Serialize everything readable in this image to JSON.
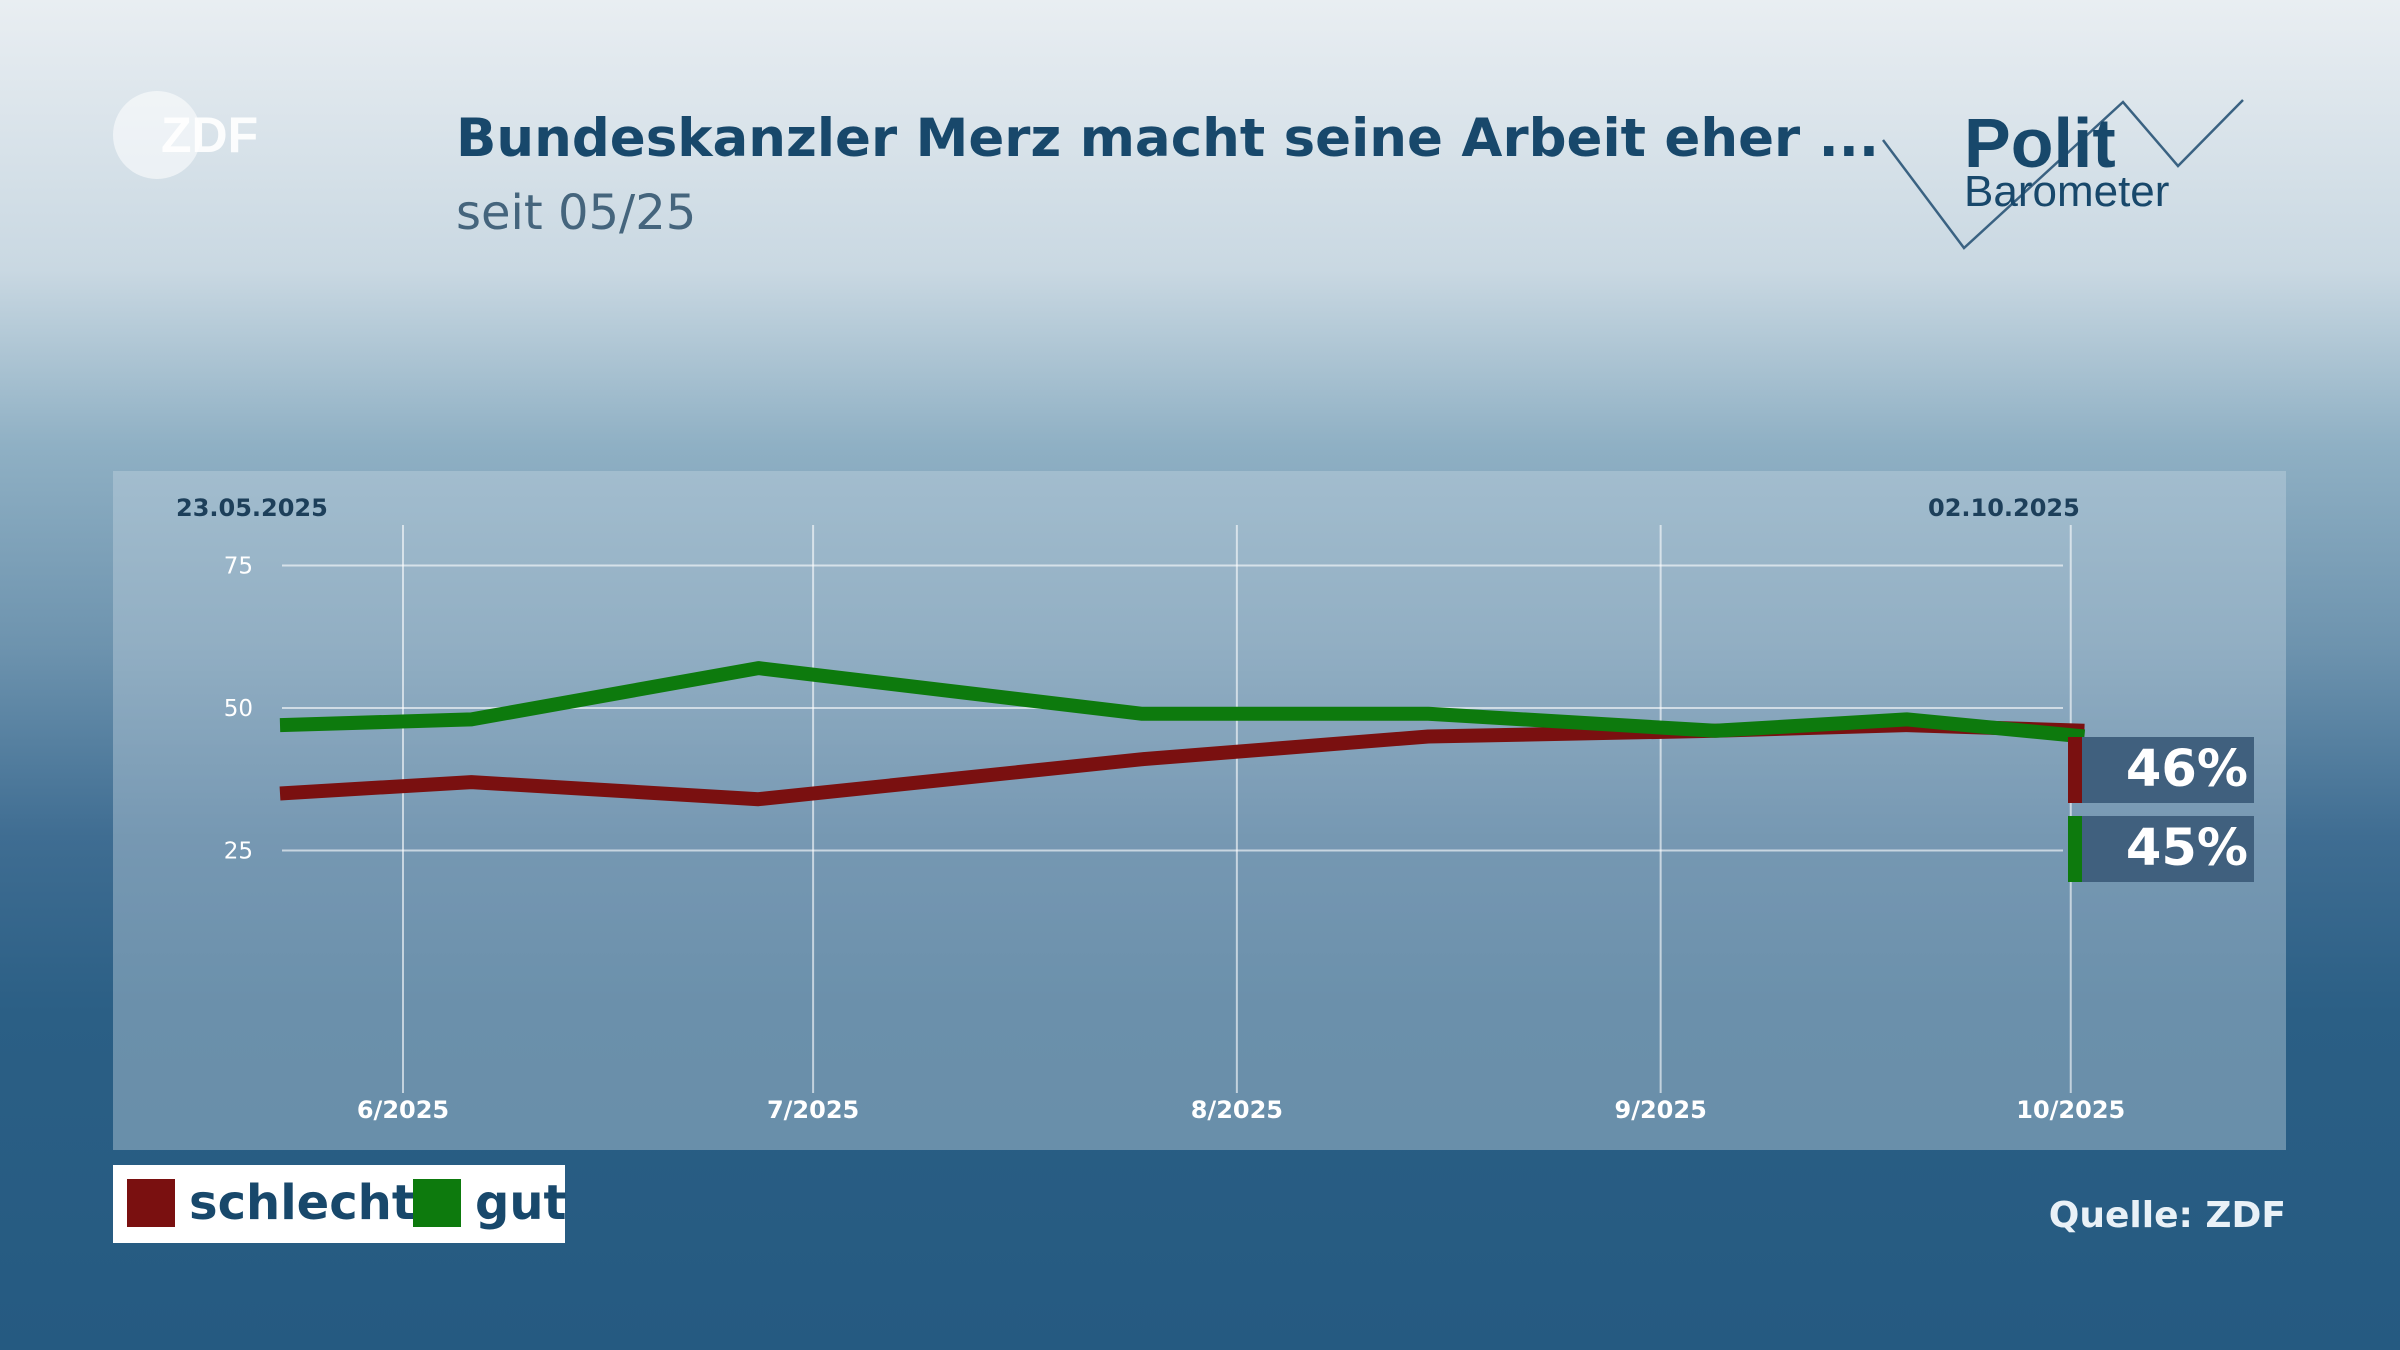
{
  "header": {
    "logo_text": "ZDF",
    "title": "Bundeskanzler Merz macht seine Arbeit eher ...",
    "subtitle": "seit 05/25",
    "brand_word_1": "Polit",
    "brand_word_2": "Barometer"
  },
  "chart_data": {
    "type": "line",
    "title": "Bundeskanzler Merz macht seine Arbeit eher ...",
    "subtitle": "seit 05/25",
    "date_start": "23.05.2025",
    "date_end": "02.10.2025",
    "x_tick_labels": [
      "6/2025",
      "7/2025",
      "8/2025",
      "9/2025",
      "10/2025"
    ],
    "x_tick_dates": [
      "2025-06-01",
      "2025-07-01",
      "2025-08-01",
      "2025-09-01",
      "2025-10-01"
    ],
    "y_ticks": [
      25,
      50,
      75
    ],
    "ylim": [
      0,
      100
    ],
    "grid": true,
    "legend_position": "bottom-left",
    "series": [
      {
        "name": "schlecht",
        "color": "#7a1010",
        "points": [
          {
            "x": "2025-05-23",
            "y": 35
          },
          {
            "x": "2025-06-06",
            "y": 37
          },
          {
            "x": "2025-06-27",
            "y": 34
          },
          {
            "x": "2025-07-25",
            "y": 41
          },
          {
            "x": "2025-08-15",
            "y": 45
          },
          {
            "x": "2025-09-05",
            "y": 46
          },
          {
            "x": "2025-09-19",
            "y": 47
          },
          {
            "x": "2025-10-02",
            "y": 46
          }
        ],
        "last_label": "46%"
      },
      {
        "name": "gut",
        "color": "#0d7a0d",
        "points": [
          {
            "x": "2025-05-23",
            "y": 47
          },
          {
            "x": "2025-06-06",
            "y": 48
          },
          {
            "x": "2025-06-27",
            "y": 57
          },
          {
            "x": "2025-07-25",
            "y": 49
          },
          {
            "x": "2025-08-15",
            "y": 49
          },
          {
            "x": "2025-09-05",
            "y": 46
          },
          {
            "x": "2025-09-19",
            "y": 48
          },
          {
            "x": "2025-10-02",
            "y": 45
          }
        ],
        "last_label": "45%"
      }
    ]
  },
  "legend": [
    {
      "label": "schlecht",
      "color": "#7a1010"
    },
    {
      "label": "gut",
      "color": "#0d7a0d"
    }
  ],
  "footer": {
    "source": "Quelle: ZDF"
  }
}
